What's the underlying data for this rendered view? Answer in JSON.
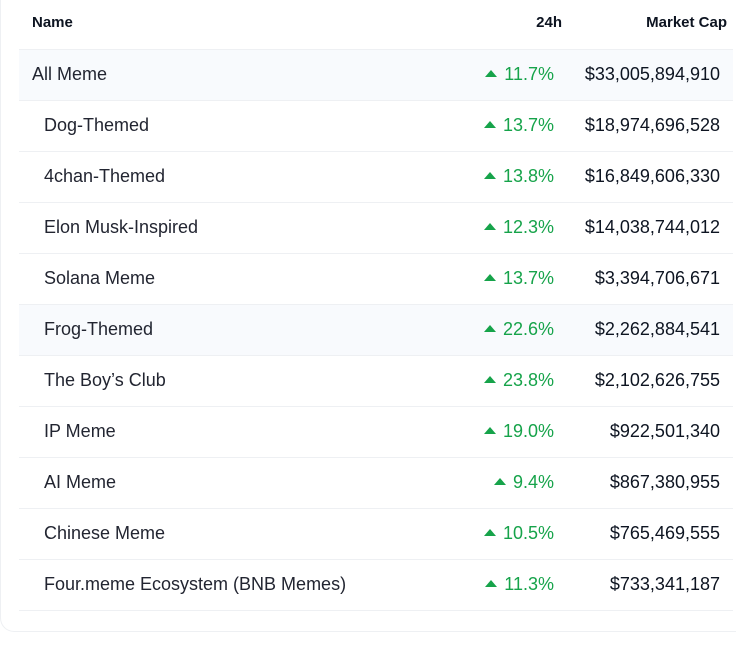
{
  "header": {
    "name_label": "Name",
    "change_label": "24h",
    "mcap_label": "Market Cap"
  },
  "colors": {
    "positive": "#16a34a",
    "highlight_row": "#f8fafd",
    "divider": "#eef0f3"
  },
  "rows": [
    {
      "name": "All Meme",
      "change": "11.7%",
      "direction": "up",
      "market_cap": "$33,005,894,910",
      "highlight": true
    },
    {
      "name": "Dog-Themed",
      "change": "13.7%",
      "direction": "up",
      "market_cap": "$18,974,696,528",
      "highlight": false
    },
    {
      "name": "4chan-Themed",
      "change": "13.8%",
      "direction": "up",
      "market_cap": "$16,849,606,330",
      "highlight": false
    },
    {
      "name": "Elon Musk-Inspired",
      "change": "12.3%",
      "direction": "up",
      "market_cap": "$14,038,744,012",
      "highlight": false
    },
    {
      "name": "Solana Meme",
      "change": "13.7%",
      "direction": "up",
      "market_cap": "$3,394,706,671",
      "highlight": false
    },
    {
      "name": "Frog-Themed",
      "change": "22.6%",
      "direction": "up",
      "market_cap": "$2,262,884,541",
      "highlight": true
    },
    {
      "name": "The Boy’s Club",
      "change": "23.8%",
      "direction": "up",
      "market_cap": "$2,102,626,755",
      "highlight": false
    },
    {
      "name": "IP Meme",
      "change": "19.0%",
      "direction": "up",
      "market_cap": "$922,501,340",
      "highlight": false
    },
    {
      "name": "AI Meme",
      "change": "9.4%",
      "direction": "up",
      "market_cap": "$867,380,955",
      "highlight": false
    },
    {
      "name": "Chinese Meme",
      "change": "10.5%",
      "direction": "up",
      "market_cap": "$765,469,555",
      "highlight": false
    },
    {
      "name": "Four.meme Ecosystem (BNB Memes)",
      "change": "11.3%",
      "direction": "up",
      "market_cap": "$733,341,187",
      "highlight": false
    }
  ]
}
